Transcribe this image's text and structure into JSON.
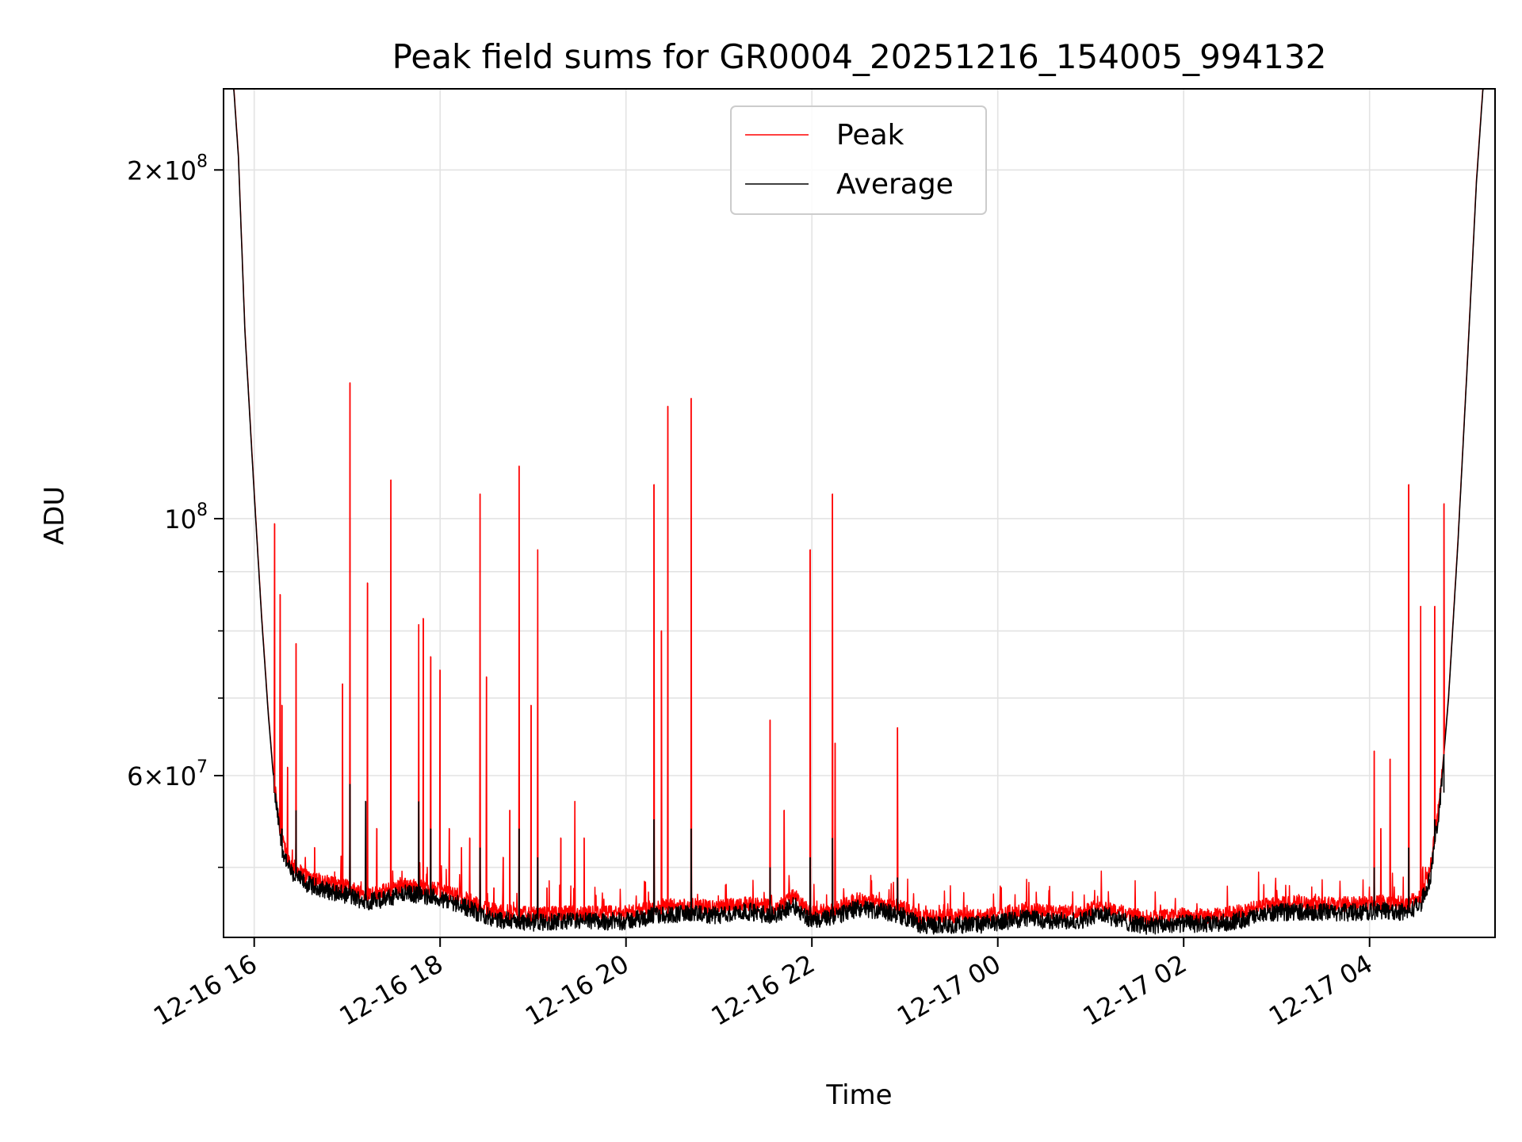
{
  "chart_data": {
    "type": "line",
    "title": "Peak field sums for GR0004_20251216_154005_994132",
    "xlabel": "Time",
    "ylabel": "ADU",
    "yscale": "log",
    "ylim": [
      43500000,
      235000000
    ],
    "xlim_hours": [
      -0.33,
      13.35
    ],
    "grid": true,
    "legend_position": "upper center",
    "x_ticks": [
      {
        "hours": 0,
        "label": "12-16 16"
      },
      {
        "hours": 2,
        "label": "12-16 18"
      },
      {
        "hours": 4,
        "label": "12-16 20"
      },
      {
        "hours": 6,
        "label": "12-16 22"
      },
      {
        "hours": 8,
        "label": "12-17 00"
      },
      {
        "hours": 10,
        "label": "12-17 02"
      },
      {
        "hours": 12,
        "label": "12-17 04"
      }
    ],
    "y_major_ticks": [
      {
        "value": 200000000,
        "mantissa": "2",
        "exponent": "8"
      },
      {
        "value": 100000000,
        "mantissa": "",
        "exponent": "8"
      },
      {
        "value": 60000000,
        "mantissa": "6",
        "exponent": "7"
      }
    ],
    "y_minor_ticks": [
      50000000,
      70000000,
      80000000,
      90000000
    ],
    "series": [
      {
        "name": "Peak",
        "color": "#ff0000"
      },
      {
        "name": "Average",
        "color": "#000000"
      }
    ],
    "baseline_average": [
      [
        -0.33,
        235000000
      ],
      [
        -0.22,
        235000000
      ],
      [
        -0.17,
        205000000
      ],
      [
        -0.1,
        145000000
      ],
      [
        0.0,
        105000000
      ],
      [
        0.08,
        82000000
      ],
      [
        0.15,
        68000000
      ],
      [
        0.22,
        58000000
      ],
      [
        0.3,
        52000000
      ],
      [
        0.4,
        49500000
      ],
      [
        0.55,
        48500000
      ],
      [
        0.8,
        47800000
      ],
      [
        1.0,
        47400000
      ],
      [
        1.2,
        46800000
      ],
      [
        1.4,
        47000000
      ],
      [
        1.6,
        47600000
      ],
      [
        1.8,
        47400000
      ],
      [
        2.0,
        47100000
      ],
      [
        2.2,
        46600000
      ],
      [
        2.4,
        45800000
      ],
      [
        2.6,
        45200000
      ],
      [
        2.8,
        45000000
      ],
      [
        3.0,
        44900000
      ],
      [
        3.5,
        45000000
      ],
      [
        4.0,
        45000000
      ],
      [
        4.3,
        45500000
      ],
      [
        4.6,
        45700000
      ],
      [
        5.0,
        45500000
      ],
      [
        5.3,
        45900000
      ],
      [
        5.6,
        45500000
      ],
      [
        5.8,
        46500000
      ],
      [
        6.0,
        45000000
      ],
      [
        6.2,
        45300000
      ],
      [
        6.5,
        46200000
      ],
      [
        6.8,
        45800000
      ],
      [
        7.0,
        45400000
      ],
      [
        7.2,
        44600000
      ],
      [
        7.5,
        44700000
      ],
      [
        7.8,
        44700000
      ],
      [
        8.0,
        44900000
      ],
      [
        8.3,
        45300000
      ],
      [
        8.6,
        45000000
      ],
      [
        8.9,
        45100000
      ],
      [
        9.1,
        45700000
      ],
      [
        9.4,
        44900000
      ],
      [
        9.6,
        44600000
      ],
      [
        9.8,
        44700000
      ],
      [
        10.0,
        44800000
      ],
      [
        10.3,
        44700000
      ],
      [
        10.6,
        45100000
      ],
      [
        10.9,
        45700000
      ],
      [
        11.2,
        45900000
      ],
      [
        11.5,
        45800000
      ],
      [
        11.8,
        45800000
      ],
      [
        12.0,
        45900000
      ],
      [
        12.2,
        46000000
      ],
      [
        12.4,
        45800000
      ],
      [
        12.55,
        46600000
      ],
      [
        12.65,
        49000000
      ],
      [
        12.75,
        56000000
      ],
      [
        12.85,
        70000000
      ],
      [
        12.95,
        95000000
      ],
      [
        13.05,
        135000000
      ],
      [
        13.15,
        195000000
      ],
      [
        13.22,
        235000000
      ],
      [
        13.35,
        235000000
      ]
    ],
    "peak_spikes_hours_adu": [
      [
        0.22,
        99000000
      ],
      [
        0.28,
        86000000
      ],
      [
        0.3,
        69000000
      ],
      [
        0.36,
        61000000
      ],
      [
        0.45,
        78000000
      ],
      [
        0.55,
        51000000
      ],
      [
        0.65,
        52000000
      ],
      [
        0.95,
        72000000
      ],
      [
        1.03,
        131000000
      ],
      [
        1.22,
        88000000
      ],
      [
        1.32,
        54000000
      ],
      [
        1.47,
        108000000
      ],
      [
        1.57,
        49000000
      ],
      [
        1.77,
        81000000
      ],
      [
        1.82,
        82000000
      ],
      [
        1.9,
        76000000
      ],
      [
        2.0,
        74000000
      ],
      [
        2.1,
        54000000
      ],
      [
        2.23,
        52000000
      ],
      [
        2.32,
        53000000
      ],
      [
        2.43,
        105000000
      ],
      [
        2.5,
        73000000
      ],
      [
        2.58,
        48000000
      ],
      [
        2.68,
        51000000
      ],
      [
        2.75,
        56000000
      ],
      [
        2.85,
        111000000
      ],
      [
        2.98,
        69000000
      ],
      [
        3.05,
        94000000
      ],
      [
        3.15,
        48000000
      ],
      [
        3.3,
        53000000
      ],
      [
        3.45,
        57000000
      ],
      [
        3.55,
        53000000
      ],
      [
        4.3,
        107000000
      ],
      [
        4.38,
        80000000
      ],
      [
        4.45,
        125000000
      ],
      [
        4.7,
        127000000
      ],
      [
        5.55,
        67000000
      ],
      [
        5.7,
        56000000
      ],
      [
        5.98,
        94000000
      ],
      [
        6.22,
        105000000
      ],
      [
        6.25,
        64000000
      ],
      [
        6.92,
        66000000
      ],
      [
        7.15,
        46500000
      ],
      [
        9.0,
        46200000
      ],
      [
        12.05,
        63000000
      ],
      [
        12.12,
        54000000
      ],
      [
        12.22,
        62000000
      ],
      [
        12.42,
        107000000
      ],
      [
        12.55,
        84000000
      ],
      [
        12.7,
        84000000
      ],
      [
        12.8,
        103000000
      ]
    ],
    "average_spikes_hours_adu": [
      [
        0.3,
        54000000
      ],
      [
        0.45,
        56000000
      ],
      [
        1.03,
        59000000
      ],
      [
        1.2,
        57000000
      ],
      [
        1.77,
        57000000
      ],
      [
        1.9,
        54000000
      ],
      [
        2.43,
        52000000
      ],
      [
        2.85,
        54000000
      ],
      [
        3.05,
        51000000
      ],
      [
        4.3,
        55000000
      ],
      [
        4.7,
        54000000
      ],
      [
        5.55,
        50000000
      ],
      [
        5.98,
        51000000
      ],
      [
        6.22,
        53000000
      ],
      [
        6.92,
        49000000
      ],
      [
        12.05,
        50000000
      ],
      [
        12.42,
        52000000
      ],
      [
        12.7,
        55000000
      ],
      [
        12.8,
        58000000
      ]
    ]
  }
}
